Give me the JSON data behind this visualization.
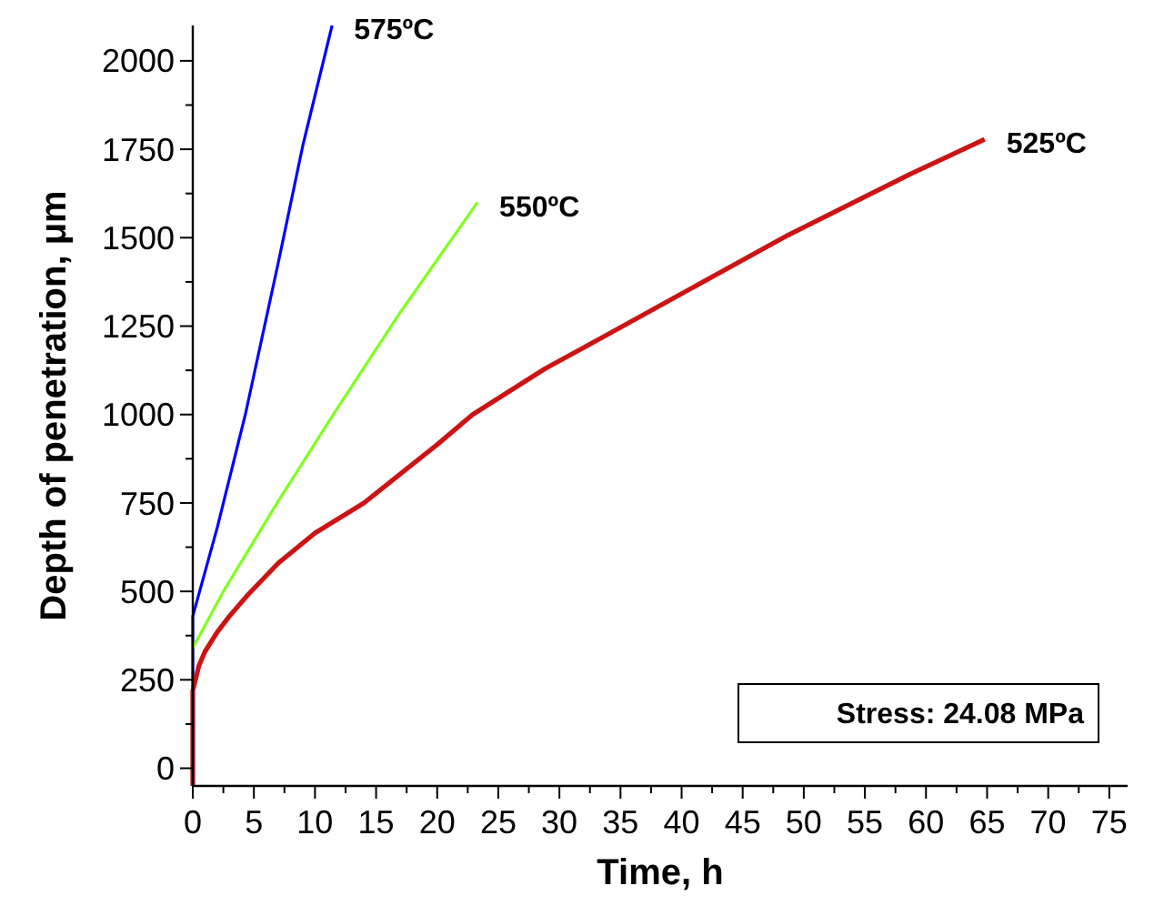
{
  "chart_data": {
    "type": "line",
    "xlabel": "Time, h",
    "ylabel": "Depth of penetration, μm",
    "xlim": [
      0,
      76.5
    ],
    "ylim": [
      -50,
      2100
    ],
    "xticks": [
      0,
      {
        "value": 2.5,
        "label": null
      },
      5,
      {
        "value": 7.5,
        "label": null
      },
      10,
      {
        "value": 12.5,
        "label": null
      },
      15,
      {
        "value": 17.5,
        "label": null
      },
      20,
      {
        "value": 22.5,
        "label": null
      },
      25,
      {
        "value": 27.5,
        "label": null
      },
      30,
      {
        "value": 32.5,
        "label": null
      },
      35,
      {
        "value": 37.5,
        "label": null
      },
      40,
      {
        "value": 42.5,
        "label": null
      },
      45,
      {
        "value": 47.5,
        "label": null
      },
      50,
      {
        "value": 52.5,
        "label": null
      },
      55,
      {
        "value": 57.5,
        "label": null
      },
      60,
      {
        "value": 62.5,
        "label": null
      },
      65,
      {
        "value": 67.5,
        "label": null
      },
      70,
      {
        "value": 72.5,
        "label": null
      },
      75
    ],
    "yticks": [
      0,
      {
        "value": 125,
        "label": null
      },
      250,
      {
        "value": 375,
        "label": null
      },
      500,
      {
        "value": 625,
        "label": null
      },
      750,
      {
        "value": 875,
        "label": null
      },
      1000,
      {
        "value": 1125,
        "label": null
      },
      1250,
      {
        "value": 1375,
        "label": null
      },
      1500,
      {
        "value": 1625,
        "label": null
      },
      1750,
      {
        "value": 1875,
        "label": null
      },
      2000
    ],
    "grid": false,
    "marker": "none",
    "line_style": "solid",
    "series": [
      {
        "color": "#0000ff",
        "x": [
          0,
          0,
          2,
          4.3,
          7,
          9,
          11.4
        ],
        "values": [
          0,
          430,
          680,
          1000,
          1430,
          1760,
          2100
        ]
      },
      {
        "color": "#80ff20",
        "x": [
          0,
          2.5,
          6.9,
          11.5,
          17,
          23.3
        ],
        "values": [
          340,
          500,
          750,
          1000,
          1290,
          1600
        ]
      },
      {
        "color": "#cc1414",
        "x": [
          0,
          0,
          0.5,
          1,
          2,
          3,
          4.5,
          7,
          10,
          14,
          20,
          22.9,
          28.8,
          33.3,
          38.7,
          48.7,
          58.6,
          64.8
        ],
        "values": [
          -50,
          220,
          290,
          330,
          385,
          430,
          490,
          580,
          665,
          750,
          915,
          1000,
          1129,
          1214,
          1317,
          1507,
          1678,
          1778
        ]
      }
    ],
    "annotations": [
      {
        "text": "575ºC",
        "x": 11.4,
        "y": 2100
      },
      {
        "text": "550ºC",
        "x": 23.3,
        "y": 1600
      },
      {
        "text": "525ºC",
        "x": 64.8,
        "y": 1778
      },
      "Stress: 24.08 MPa"
    ]
  }
}
